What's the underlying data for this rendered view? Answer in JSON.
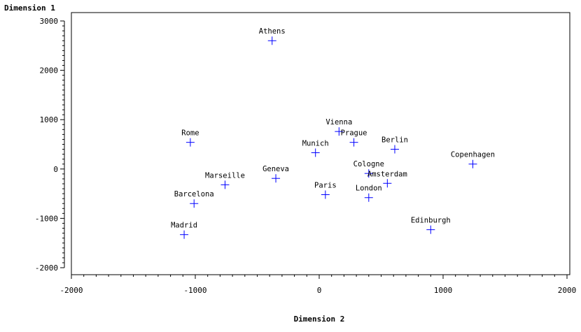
{
  "chart_data": {
    "type": "scatter",
    "title": "",
    "ylabel": "Dimension 1",
    "xlabel": "Dimension 2",
    "xlim": [
      -2000,
      2000
    ],
    "ylim": [
      -2000,
      3000
    ],
    "xticks": [
      -2000,
      -1000,
      0,
      1000,
      2000
    ],
    "yticks": [
      -2000,
      -1000,
      0,
      1000,
      2000,
      3000
    ],
    "marker": "plus",
    "marker_color": "#0000ff",
    "points": [
      {
        "label": "Athens",
        "x": -380,
        "y": 2600
      },
      {
        "label": "Vienna",
        "x": 160,
        "y": 760
      },
      {
        "label": "Prague",
        "x": 280,
        "y": 540
      },
      {
        "label": "Berlin",
        "x": 610,
        "y": 400
      },
      {
        "label": "Rome",
        "x": -1040,
        "y": 540
      },
      {
        "label": "Munich",
        "x": -30,
        "y": 330
      },
      {
        "label": "Copenhagen",
        "x": 1240,
        "y": 100
      },
      {
        "label": "Cologne",
        "x": 400,
        "y": -90
      },
      {
        "label": "Geneva",
        "x": -350,
        "y": -190
      },
      {
        "label": "Amsterdam",
        "x": 550,
        "y": -290
      },
      {
        "label": "Marseille",
        "x": -760,
        "y": -320
      },
      {
        "label": "Paris",
        "x": 50,
        "y": -520
      },
      {
        "label": "London",
        "x": 400,
        "y": -580
      },
      {
        "label": "Barcelona",
        "x": -1010,
        "y": -700
      },
      {
        "label": "Edinburgh",
        "x": 900,
        "y": -1230
      },
      {
        "label": "Madrid",
        "x": -1090,
        "y": -1330
      }
    ]
  }
}
